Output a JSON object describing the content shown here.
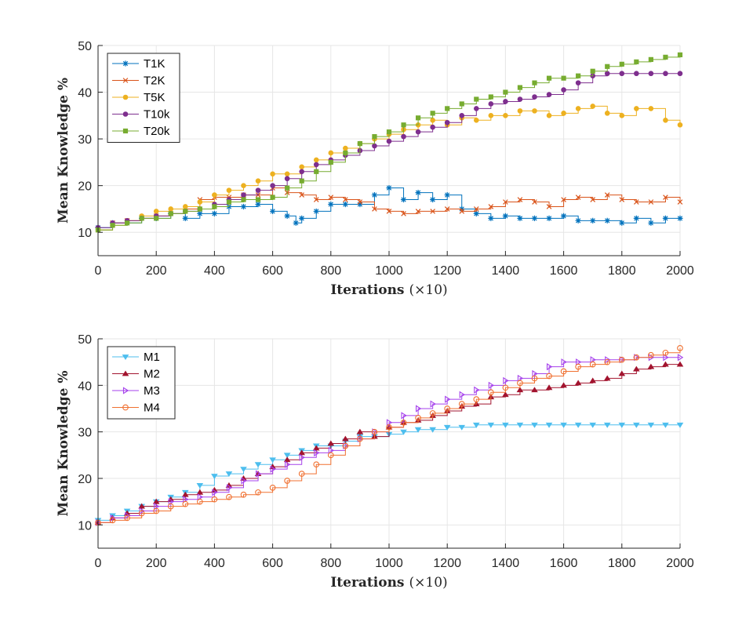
{
  "chart_data": [
    {
      "type": "line",
      "xlabel_main": "Iterations",
      "xlabel_suffix": "(×10)",
      "ylabel": "Mean Knowledge %",
      "xlim": [
        0,
        2000
      ],
      "ylim": [
        5,
        50
      ],
      "xticks": [
        0,
        200,
        400,
        600,
        800,
        1000,
        1200,
        1400,
        1600,
        1800,
        2000
      ],
      "yticks": [
        10,
        20,
        30,
        40,
        50
      ],
      "grid": true,
      "legend_position": "top-left",
      "series": [
        {
          "name": "T1K",
          "color": "#0072BD",
          "marker": "asterisk",
          "x": [
            0,
            50,
            100,
            150,
            200,
            250,
            300,
            350,
            400,
            450,
            500,
            550,
            600,
            650,
            680,
            700,
            750,
            800,
            850,
            900,
            950,
            1000,
            1050,
            1100,
            1150,
            1200,
            1250,
            1300,
            1350,
            1400,
            1450,
            1500,
            1550,
            1600,
            1650,
            1700,
            1750,
            1800,
            1850,
            1900,
            1950,
            2000
          ],
          "y": [
            11,
            12,
            12,
            13,
            13,
            14,
            13,
            14,
            14,
            15.5,
            15.5,
            16,
            14.5,
            13.5,
            12,
            13,
            14.5,
            16,
            16,
            16,
            18,
            19.5,
            17,
            18.5,
            17,
            18,
            15,
            14,
            13,
            13.5,
            13,
            13,
            13,
            13.5,
            12.5,
            12.5,
            12.5,
            12,
            13,
            12,
            13,
            13
          ]
        },
        {
          "name": "T2K",
          "color": "#D95319",
          "marker": "x",
          "x": [
            0,
            50,
            100,
            150,
            200,
            250,
            300,
            350,
            400,
            450,
            500,
            550,
            600,
            650,
            700,
            750,
            800,
            850,
            900,
            950,
            1000,
            1050,
            1100,
            1150,
            1200,
            1250,
            1300,
            1350,
            1400,
            1450,
            1500,
            1550,
            1600,
            1650,
            1700,
            1750,
            1800,
            1850,
            1900,
            1950,
            2000
          ],
          "y": [
            10.5,
            12,
            12.5,
            13,
            13.5,
            14,
            15,
            17,
            17.5,
            17.5,
            18,
            18,
            19.5,
            18.5,
            18,
            17,
            17.5,
            17,
            16.5,
            15,
            14.5,
            14,
            14.5,
            14.5,
            15,
            14.5,
            15,
            15.5,
            16.5,
            17,
            16.5,
            15.5,
            17,
            17.5,
            17,
            18,
            17,
            16.5,
            16.5,
            17.5,
            16.5
          ]
        },
        {
          "name": "T5K",
          "color": "#EDB120",
          "marker": "circle-filled",
          "x": [
            0,
            50,
            100,
            150,
            200,
            250,
            300,
            350,
            400,
            450,
            500,
            550,
            600,
            650,
            700,
            750,
            800,
            850,
            900,
            950,
            1000,
            1050,
            1100,
            1150,
            1200,
            1250,
            1300,
            1350,
            1400,
            1450,
            1500,
            1550,
            1600,
            1650,
            1700,
            1750,
            1800,
            1850,
            1900,
            1950,
            2000
          ],
          "y": [
            10.5,
            11.5,
            12.5,
            13.5,
            14.5,
            15,
            15.5,
            16.5,
            18,
            19,
            20,
            21,
            22.5,
            22.5,
            24,
            25.5,
            27,
            28,
            29,
            30,
            31,
            32,
            33,
            34,
            33,
            34.5,
            34,
            35,
            35,
            36,
            36,
            35,
            35.5,
            36.5,
            37,
            35.5,
            35,
            36.5,
            36.5,
            34,
            33
          ]
        },
        {
          "name": "T10k",
          "color": "#7E2F8E",
          "marker": "circle-filled",
          "x": [
            0,
            50,
            100,
            150,
            200,
            250,
            300,
            350,
            400,
            450,
            500,
            550,
            600,
            650,
            700,
            750,
            800,
            850,
            900,
            950,
            1000,
            1050,
            1100,
            1150,
            1200,
            1250,
            1300,
            1350,
            1400,
            1450,
            1500,
            1550,
            1600,
            1650,
            1700,
            1750,
            1800,
            1850,
            1900,
            1950,
            2000
          ],
          "y": [
            11,
            12,
            12.5,
            13,
            13.5,
            14,
            14.5,
            15,
            16,
            17,
            18,
            19,
            20,
            21.5,
            23,
            24.5,
            25.5,
            26.5,
            27.5,
            28.5,
            29.5,
            30.5,
            31.5,
            32.5,
            33.5,
            35,
            36.5,
            37.5,
            38,
            38.5,
            39,
            39.5,
            40.5,
            42,
            43.5,
            44,
            44,
            44,
            44,
            44,
            44
          ]
        },
        {
          "name": "T20k",
          "color": "#77AC30",
          "marker": "square",
          "x": [
            0,
            50,
            100,
            150,
            200,
            250,
            300,
            350,
            400,
            450,
            500,
            550,
            600,
            650,
            700,
            750,
            800,
            850,
            900,
            950,
            1000,
            1050,
            1100,
            1150,
            1200,
            1250,
            1300,
            1350,
            1400,
            1450,
            1500,
            1550,
            1600,
            1650,
            1700,
            1750,
            1800,
            1850,
            1900,
            1950,
            2000
          ],
          "y": [
            10.5,
            11.5,
            12,
            13,
            13,
            14,
            14.5,
            15,
            15.5,
            16.5,
            17,
            17,
            17.5,
            19.5,
            21,
            23,
            25,
            27,
            29,
            30.5,
            31.5,
            33,
            34.5,
            35.5,
            36.5,
            37.5,
            38.5,
            39,
            40,
            41,
            42,
            43,
            43,
            43.5,
            44.5,
            45.5,
            46,
            46.5,
            47,
            47.5,
            48
          ]
        }
      ]
    },
    {
      "type": "line",
      "xlabel_main": "Iterations",
      "xlabel_suffix": "(×10)",
      "ylabel": "Mean Knowledge %",
      "xlim": [
        0,
        2000
      ],
      "ylim": [
        5,
        50
      ],
      "xticks": [
        0,
        200,
        400,
        600,
        800,
        1000,
        1200,
        1400,
        1600,
        1800,
        2000
      ],
      "yticks": [
        10,
        20,
        30,
        40,
        50
      ],
      "grid": true,
      "legend_position": "top-left",
      "series": [
        {
          "name": "M1",
          "color": "#4DBEEE",
          "marker": "triangle-down",
          "x": [
            0,
            50,
            100,
            150,
            200,
            250,
            300,
            350,
            400,
            450,
            500,
            550,
            600,
            650,
            700,
            750,
            800,
            850,
            900,
            950,
            1000,
            1050,
            1100,
            1150,
            1200,
            1250,
            1300,
            1350,
            1400,
            1450,
            1500,
            1550,
            1600,
            1650,
            1700,
            1750,
            1800,
            1850,
            1900,
            1950,
            2000
          ],
          "y": [
            11,
            12,
            13,
            14,
            15,
            16,
            17,
            18.5,
            20.5,
            21,
            22,
            23,
            24,
            25,
            26,
            27,
            27,
            28,
            29,
            29,
            29.5,
            30,
            30.5,
            30.5,
            31,
            31,
            31.5,
            31.5,
            31.5,
            31.5,
            31.5,
            31.5,
            31.5,
            31.5,
            31.5,
            31.5,
            31.5,
            31.5,
            31.5,
            31.5,
            31.5
          ]
        },
        {
          "name": "M2",
          "color": "#A2142F",
          "marker": "triangle-up",
          "x": [
            0,
            50,
            100,
            150,
            200,
            250,
            300,
            350,
            400,
            450,
            500,
            550,
            600,
            650,
            700,
            750,
            800,
            850,
            900,
            950,
            1000,
            1050,
            1100,
            1150,
            1200,
            1250,
            1300,
            1350,
            1400,
            1450,
            1500,
            1550,
            1600,
            1650,
            1700,
            1750,
            1800,
            1850,
            1900,
            1950,
            2000
          ],
          "y": [
            10.5,
            11.5,
            12.5,
            14,
            15,
            15.5,
            16.5,
            17,
            17.5,
            18.5,
            20,
            21,
            22.5,
            24,
            25.5,
            26.5,
            27.5,
            28.5,
            30,
            29,
            31,
            32,
            32.5,
            33.5,
            34.5,
            35.5,
            36,
            37.5,
            38,
            39,
            39,
            39.5,
            40,
            40.5,
            41,
            41.5,
            42.5,
            43.5,
            44,
            44.5,
            44.5
          ]
        },
        {
          "name": "M3",
          "color": "#A642EC",
          "marker": "triangle-right",
          "x": [
            0,
            50,
            100,
            150,
            200,
            250,
            300,
            350,
            400,
            450,
            500,
            550,
            600,
            650,
            700,
            750,
            800,
            850,
            900,
            950,
            1000,
            1050,
            1100,
            1150,
            1200,
            1250,
            1300,
            1350,
            1400,
            1450,
            1500,
            1550,
            1600,
            1650,
            1700,
            1750,
            1800,
            1850,
            1900,
            1950,
            2000
          ],
          "y": [
            10.5,
            11.5,
            12,
            13,
            14,
            15,
            15.5,
            16,
            17,
            18,
            19.5,
            21,
            22,
            23,
            24.5,
            25.5,
            26,
            27,
            28.5,
            30,
            32,
            33.5,
            35,
            36,
            37,
            38,
            39,
            40,
            41,
            41.5,
            42.5,
            44,
            45,
            45,
            45.5,
            45.5,
            45.5,
            46,
            46,
            46,
            46
          ]
        },
        {
          "name": "M4",
          "color": "#F07030",
          "marker": "circle-open",
          "x": [
            0,
            50,
            100,
            150,
            200,
            250,
            300,
            350,
            400,
            450,
            500,
            550,
            600,
            650,
            700,
            750,
            800,
            850,
            900,
            950,
            1000,
            1050,
            1100,
            1150,
            1200,
            1250,
            1300,
            1350,
            1400,
            1450,
            1500,
            1550,
            1600,
            1650,
            1700,
            1750,
            1800,
            1850,
            1900,
            1950,
            2000
          ],
          "y": [
            10.5,
            11,
            11.5,
            12.5,
            13,
            14,
            14.5,
            15,
            15.5,
            16,
            16.5,
            17,
            18,
            19.5,
            21,
            23,
            25,
            27,
            28.5,
            30,
            31,
            32,
            33,
            34,
            35,
            36,
            37,
            38.5,
            39.5,
            40.5,
            41.5,
            42,
            43,
            44,
            44.5,
            45,
            45.5,
            46,
            46.5,
            47,
            48
          ]
        }
      ]
    }
  ]
}
